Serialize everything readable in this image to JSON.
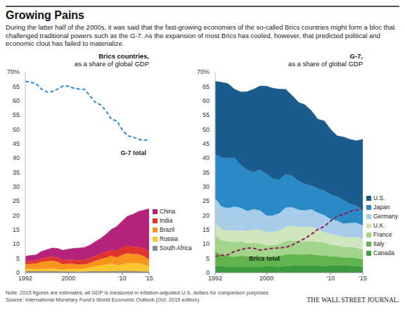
{
  "title": "Growing Pains",
  "subtitle": "During the latter half of the 2000s, it was said that the fast-growing economies of the so-called Brics countries might form a bloc that challenged traditional powers such as the G-7. As the expansion of most Brics has cooled, however, that predicted political and economic clout has failed to materialize.",
  "note": "Note: 2015 figures are estimates; all GDP is measured in inflation-adjusted U.S. dollars for comparison purposes.",
  "source": "Source: International Monetary Fund's World Economic Outlook (Oct. 2015 edition)",
  "credit": "THE WALL STREET JOURNAL.",
  "chart_data": [
    {
      "type": "area",
      "stacked": true,
      "title": "Brics countries,",
      "subtitle": "as a share of global GDP",
      "legend": "right",
      "grid": false,
      "x": [
        1992,
        1993,
        1994,
        1995,
        1996,
        1997,
        1998,
        1999,
        2000,
        2001,
        2002,
        2003,
        2004,
        2005,
        2006,
        2007,
        2008,
        2009,
        2010,
        2011,
        2012,
        2013,
        2014,
        2015
      ],
      "xlim": [
        1992,
        2015
      ],
      "xticks": [
        1992,
        2000,
        {
          "value": 2010,
          "label": "'10"
        },
        {
          "value": 2015,
          "label": "'15"
        }
      ],
      "ylim": [
        0,
        70
      ],
      "yticks": [
        0,
        5,
        10,
        15,
        20,
        25,
        30,
        35,
        40,
        45,
        50,
        55,
        60,
        65,
        {
          "value": 70,
          "label": "70%"
        }
      ],
      "series": [
        {
          "name": "China",
          "color": "#b3237a",
          "values": [
            1.7,
            1.9,
            1.9,
            2.4,
            2.7,
            3.0,
            3.3,
            3.4,
            3.6,
            4.0,
            4.3,
            4.3,
            4.5,
            4.9,
            5.4,
            6.1,
            7.2,
            8.5,
            9.2,
            10.3,
            11.3,
            12.3,
            13.3,
            14.8
          ]
        },
        {
          "name": "India",
          "color": "#e2342f",
          "values": [
            1.1,
            1.1,
            1.1,
            1.2,
            1.3,
            1.4,
            1.4,
            1.5,
            1.4,
            1.5,
            1.5,
            1.6,
            1.7,
            1.8,
            1.8,
            2.1,
            2.0,
            2.3,
            2.6,
            2.6,
            2.5,
            2.5,
            2.7,
            2.9
          ]
        },
        {
          "name": "Brazil",
          "color": "#f7941d",
          "values": [
            1.5,
            1.6,
            1.9,
            2.5,
            2.6,
            2.7,
            2.6,
            1.9,
            2.0,
            1.7,
            1.5,
            1.4,
            1.5,
            1.9,
            2.2,
            2.4,
            2.7,
            2.7,
            3.3,
            3.5,
            3.2,
            3.1,
            3.0,
            2.4
          ]
        },
        {
          "name": "Russia",
          "color": "#fcc62f",
          "values": [
            0.9,
            0.9,
            0.8,
            0.8,
            0.9,
            1.0,
            0.7,
            0.6,
            0.8,
            0.9,
            1.0,
            1.1,
            1.4,
            1.7,
            2.0,
            2.3,
            2.7,
            2.1,
            2.3,
            2.7,
            2.8,
            2.9,
            2.4,
            1.8
          ]
        },
        {
          "name": "South Africa",
          "color": "#8c8c8c",
          "values": [
            0.5,
            0.5,
            0.5,
            0.5,
            0.5,
            0.5,
            0.5,
            0.4,
            0.4,
            0.4,
            0.3,
            0.4,
            0.5,
            0.5,
            0.5,
            0.5,
            0.5,
            0.5,
            0.6,
            0.6,
            0.5,
            0.5,
            0.4,
            0.4
          ]
        },
        {
          "name": "G-7 total",
          "type": "line",
          "line_style": "dashed",
          "color": "#2f8fd2",
          "values": [
            66.7,
            66.4,
            65.9,
            64.0,
            63.0,
            63.1,
            64.0,
            65.1,
            65.0,
            64.3,
            64.0,
            63.9,
            61.7,
            59.4,
            58.5,
            56.4,
            53.5,
            52.9,
            49.9,
            47.7,
            47.3,
            46.5,
            46.0,
            46.5
          ]
        }
      ]
    },
    {
      "type": "area",
      "stacked": true,
      "title": "G-7,",
      "subtitle": "as a share of global GDP",
      "legend": "right",
      "grid": false,
      "x": [
        1992,
        1993,
        1994,
        1995,
        1996,
        1997,
        1998,
        1999,
        2000,
        2001,
        2002,
        2003,
        2004,
        2005,
        2006,
        2007,
        2008,
        2009,
        2010,
        2011,
        2012,
        2013,
        2014,
        2015
      ],
      "xlim": [
        1992,
        2015
      ],
      "xticks": [
        1992,
        2000,
        {
          "value": 2010,
          "label": "'10"
        },
        {
          "value": 2015,
          "label": "'15"
        }
      ],
      "ylim": [
        0,
        70
      ],
      "yticks": [
        0,
        5,
        10,
        15,
        20,
        25,
        30,
        35,
        40,
        45,
        50,
        55,
        60,
        65,
        {
          "value": 70,
          "label": "70%"
        }
      ],
      "series": [
        {
          "name": "U.S.",
          "color": "#1a5c8c",
          "values": [
            25.5,
            26.3,
            25.9,
            24.0,
            25.4,
            27.3,
            29.0,
            29.2,
            30.6,
            31.6,
            31.5,
            29.6,
            28.0,
            27.5,
            27.6,
            26.0,
            24.2,
            24.3,
            22.7,
            21.2,
            22.0,
            22.5,
            22.6,
            24.5
          ]
        },
        {
          "name": "Japan",
          "color": "#2a8ac6",
          "values": [
            15.3,
            17.1,
            17.5,
            17.0,
            15.0,
            14.3,
            12.9,
            14.2,
            14.5,
            12.8,
            11.8,
            11.6,
            10.9,
            10.0,
            9.2,
            8.3,
            8.4,
            8.6,
            8.6,
            8.4,
            8.2,
            6.7,
            6.0,
            5.6
          ]
        },
        {
          "name": "Germany",
          "color": "#a8cdea",
          "values": [
            8.5,
            7.9,
            7.8,
            8.4,
            7.9,
            7.0,
            7.1,
            6.8,
            5.8,
            5.8,
            6.0,
            6.6,
            6.4,
            6.0,
            5.9,
            6.0,
            5.9,
            5.8,
            5.2,
            5.1,
            4.7,
            4.9,
            4.9,
            4.6
          ]
        },
        {
          "name": "U.K.",
          "color": "#cfe6bd",
          "values": [
            4.4,
            3.8,
            3.9,
            3.9,
            3.9,
            4.3,
            4.7,
            4.7,
            4.6,
            4.5,
            4.7,
            5.0,
            5.2,
            5.0,
            5.0,
            5.1,
            4.3,
            3.7,
            3.7,
            3.5,
            3.5,
            3.5,
            3.8,
            3.9
          ]
        },
        {
          "name": "France",
          "color": "#a2d489",
          "values": [
            5.6,
            5.1,
            5.0,
            5.1,
            4.9,
            4.5,
            4.6,
            4.5,
            4.0,
            4.0,
            4.3,
            4.8,
            4.8,
            4.6,
            4.5,
            4.6,
            4.6,
            4.6,
            4.0,
            3.9,
            3.6,
            3.7,
            3.6,
            3.3
          ]
        },
        {
          "name": "Italy",
          "color": "#60b44b",
          "values": [
            5.0,
            4.0,
            3.7,
            3.6,
            3.9,
            3.6,
            3.7,
            3.6,
            3.3,
            3.4,
            3.6,
            4.0,
            4.0,
            3.8,
            3.7,
            3.8,
            3.7,
            3.6,
            3.2,
            3.1,
            2.8,
            2.8,
            2.8,
            2.5
          ]
        },
        {
          "name": "Canada",
          "color": "#3b9a3e",
          "values": [
            2.4,
            2.2,
            2.1,
            2.0,
            2.0,
            2.1,
            2.0,
            2.1,
            2.2,
            2.2,
            2.1,
            2.3,
            2.4,
            2.5,
            2.6,
            2.6,
            2.4,
            2.3,
            2.5,
            2.5,
            2.5,
            2.4,
            2.3,
            2.1
          ]
        },
        {
          "name": "Brics total",
          "type": "line",
          "line_style": "dashed",
          "color": "#8e1c5c",
          "values": [
            5.7,
            6.0,
            6.2,
            7.4,
            8.0,
            8.6,
            8.5,
            7.8,
            8.2,
            8.5,
            8.6,
            8.8,
            9.6,
            10.8,
            11.9,
            13.4,
            15.1,
            16.1,
            18.0,
            19.7,
            20.3,
            21.3,
            21.8,
            22.3
          ]
        }
      ]
    }
  ]
}
